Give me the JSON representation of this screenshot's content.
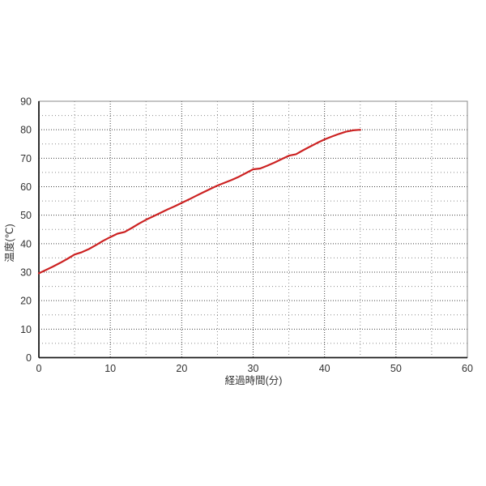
{
  "page": {
    "background": "#ffffff"
  },
  "colors": {
    "line": "#cc2222",
    "grid_major": "#404040",
    "grid_minor": "#8a8a8a",
    "axis": "#1a1a1a",
    "border": "#888888",
    "text": "#333333"
  },
  "chart_data": {
    "type": "line",
    "title": "",
    "xlabel": "経過時間(分)",
    "ylabel": "温度(℃)",
    "xlim": [
      0,
      60
    ],
    "ylim": [
      0,
      90
    ],
    "x_ticks": [
      0,
      10,
      20,
      30,
      40,
      50,
      60
    ],
    "y_ticks": [
      0,
      10,
      20,
      30,
      40,
      50,
      60,
      70,
      80,
      90
    ],
    "minor_grid_step_x": 5,
    "minor_grid_step_y": 5,
    "grid": "dotted",
    "legend": "none",
    "series": [
      {
        "name": "温度",
        "color": "#cc2222",
        "x": [
          0,
          1,
          2,
          3,
          4,
          5,
          6,
          7,
          8,
          9,
          10,
          11,
          12,
          13,
          14,
          15,
          16,
          17,
          18,
          19,
          20,
          21,
          22,
          23,
          24,
          25,
          26,
          27,
          28,
          29,
          30,
          31,
          32,
          33,
          34,
          35,
          36,
          37,
          38,
          39,
          40,
          41,
          42,
          43,
          44,
          45
        ],
        "y": [
          29.6,
          30.8,
          32.0,
          33.3,
          34.7,
          36.2,
          37.0,
          38.1,
          39.5,
          41.0,
          42.3,
          43.5,
          44.1,
          45.5,
          47.0,
          48.4,
          49.6,
          50.8,
          52.0,
          53.1,
          54.3,
          55.5,
          56.8,
          58.0,
          59.2,
          60.4,
          61.4,
          62.4,
          63.5,
          64.8,
          66.1,
          66.4,
          67.4,
          68.5,
          69.7,
          70.9,
          71.4,
          72.8,
          74.1,
          75.4,
          76.6,
          77.6,
          78.5,
          79.3,
          79.8,
          80.0
        ]
      }
    ]
  }
}
